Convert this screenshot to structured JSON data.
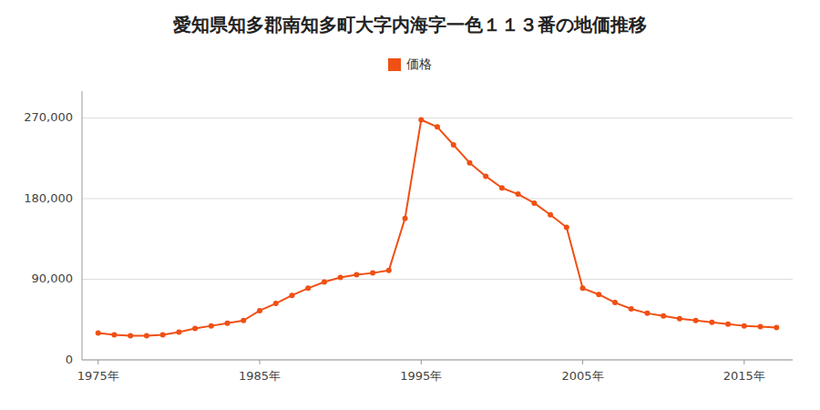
{
  "chart_data": {
    "type": "line",
    "title": "愛知県知多郡南知多町大字内海字一色１１３番の地価推移",
    "x": [
      1975,
      1976,
      1977,
      1978,
      1979,
      1980,
      1981,
      1982,
      1983,
      1984,
      1985,
      1986,
      1987,
      1988,
      1989,
      1990,
      1991,
      1992,
      1993,
      1994,
      1995,
      1996,
      1997,
      1998,
      1999,
      2000,
      2001,
      2002,
      2003,
      2004,
      2005,
      2006,
      2007,
      2008,
      2009,
      2010,
      2011,
      2012,
      2013,
      2014,
      2015,
      2016,
      2017
    ],
    "series": [
      {
        "name": "価格",
        "color": "#f05014",
        "marker": "circle",
        "values": [
          30000,
          28000,
          27000,
          27000,
          28000,
          31000,
          35000,
          38000,
          41000,
          44000,
          55000,
          63000,
          72000,
          80000,
          87000,
          92000,
          95000,
          97000,
          100000,
          158000,
          268000,
          260000,
          240000,
          220000,
          205000,
          192000,
          185000,
          175000,
          162000,
          148000,
          80000,
          73000,
          64000,
          57000,
          52000,
          49000,
          46000,
          44000,
          42000,
          40000,
          38000,
          37000,
          36000
        ]
      }
    ],
    "xlim": [
      1974,
      2018
    ],
    "xticks": [
      {
        "value": 1975,
        "label": "1975年"
      },
      {
        "value": 1985,
        "label": "1985年"
      },
      {
        "value": 1995,
        "label": "1995年"
      },
      {
        "value": 2005,
        "label": "2005年"
      },
      {
        "value": 2015,
        "label": "2015年"
      }
    ],
    "ylim": [
      0,
      300000
    ],
    "yticks": [
      0,
      {
        "value": 90000,
        "label": "90,000"
      },
      {
        "value": 180000,
        "label": "180,000"
      },
      {
        "value": 270000,
        "label": "270,000"
      }
    ],
    "grid": true,
    "legend": "top"
  }
}
